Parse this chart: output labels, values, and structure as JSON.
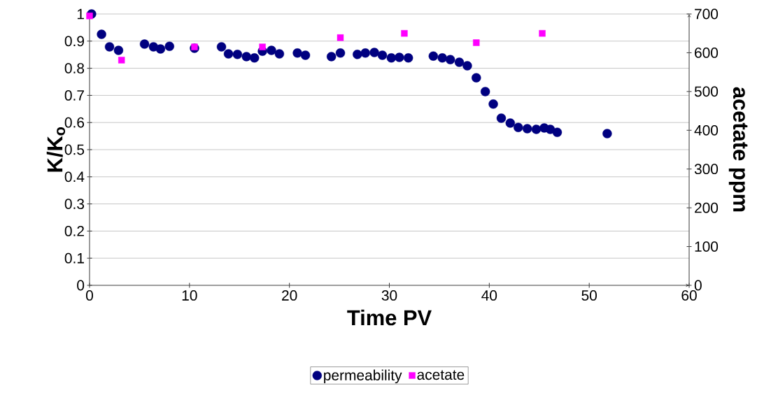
{
  "chart_data": {
    "type": "scatter",
    "xlabel": "Time PV",
    "ylabel": "K/K$_{o}$",
    "y2label": "acetate ppm",
    "xlim": [
      0,
      60
    ],
    "xticks": [
      0,
      10,
      20,
      30,
      40,
      50,
      60
    ],
    "ylim": [
      0,
      1
    ],
    "yticks": [
      0,
      0.1,
      0.2,
      0.3,
      0.4,
      0.5,
      0.6,
      0.7,
      0.8,
      0.9,
      1
    ],
    "y2lim": [
      0,
      700
    ],
    "y2ticks": [
      0,
      100,
      200,
      300,
      400,
      500,
      600,
      700
    ],
    "grid": "y",
    "legend": "bottom",
    "series": [
      {
        "name": "permeability",
        "color": "#000080",
        "marker": "circle",
        "x": [
          0.2,
          1.2,
          2.0,
          2.9,
          5.5,
          6.4,
          7.1,
          8.0,
          10.5,
          13.2,
          13.9,
          14.8,
          15.7,
          16.5,
          17.3,
          18.2,
          19.0,
          20.8,
          21.6,
          24.2,
          25.1,
          26.8,
          27.6,
          28.5,
          29.3,
          30.2,
          31.0,
          31.9,
          34.4,
          35.3,
          36.1,
          37.0,
          37.8,
          38.7,
          39.6,
          40.4,
          41.2,
          42.1,
          42.9,
          43.8,
          44.7,
          45.5,
          46.1,
          46.8,
          51.8
        ],
        "values": [
          1.0,
          0.925,
          0.879,
          0.866,
          0.889,
          0.879,
          0.871,
          0.881,
          0.874,
          0.879,
          0.853,
          0.851,
          0.843,
          0.838,
          0.863,
          0.866,
          0.853,
          0.856,
          0.848,
          0.843,
          0.856,
          0.851,
          0.856,
          0.858,
          0.848,
          0.838,
          0.84,
          0.838,
          0.845,
          0.838,
          0.832,
          0.822,
          0.809,
          0.765,
          0.714,
          0.668,
          0.616,
          0.598,
          0.582,
          0.577,
          0.575,
          0.58,
          0.575,
          0.564,
          0.559
        ]
      },
      {
        "name": "acetate",
        "color": "#ff00ff",
        "marker": "square",
        "axis": "y2",
        "x": [
          0,
          3.2,
          10.5,
          17.3,
          25.1,
          31.5,
          38.7,
          45.3
        ],
        "values": [
          695,
          581,
          615,
          615,
          639,
          650,
          626,
          650
        ]
      }
    ]
  }
}
